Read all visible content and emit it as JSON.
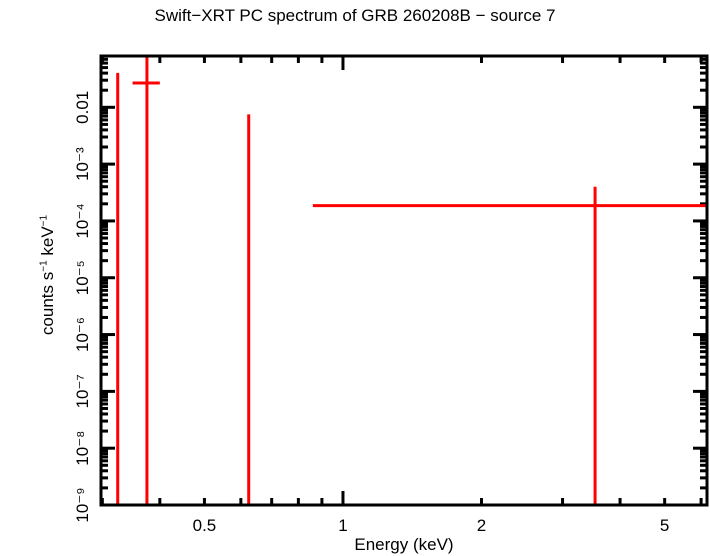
{
  "chart_data": {
    "type": "scatter",
    "title": "Swift−XRT PC spectrum of GRB 260208B − source 7",
    "xlabel": "Energy (keV)",
    "ylabel": "counts s⁻¹ keV⁻¹",
    "xscale": "log",
    "yscale": "log",
    "xlim": [
      0.298,
      6.18
    ],
    "ylim": [
      1e-09,
      0.08
    ],
    "grid": false,
    "legend": null,
    "x_ticks": [
      {
        "value": 0.5,
        "label": "0.5"
      },
      {
        "value": 1,
        "label": "1"
      },
      {
        "value": 2,
        "label": "2"
      },
      {
        "value": 5,
        "label": "5"
      }
    ],
    "y_ticks": [
      {
        "value": 0.01,
        "label": "0.01"
      },
      {
        "value": 0.001,
        "label": "10⁻³"
      },
      {
        "value": 0.0001,
        "label": "10⁻⁴"
      },
      {
        "value": 1e-05,
        "label": "10⁻⁵"
      },
      {
        "value": 1e-06,
        "label": "10⁻⁶"
      },
      {
        "value": 1e-07,
        "label": "10⁻⁷"
      },
      {
        "value": 1e-08,
        "label": "10⁻⁸"
      },
      {
        "value": 1e-09,
        "label": "10⁻⁹"
      }
    ],
    "series": [
      {
        "name": "source 7 PC spectrum",
        "color": "#ff0000",
        "points": [
          {
            "x": 0.324,
            "xlo": 0.324,
            "xhi": 0.324,
            "y": 0.0404,
            "ylo": 1e-09,
            "yhi": 0.0404,
            "note": "upper-limit style bar, no horizontal extent visible"
          },
          {
            "x": 0.375,
            "xlo": 0.349,
            "xhi": 0.4,
            "y": 0.0268,
            "ylo": 1e-09,
            "yhi": 0.08
          },
          {
            "x": 0.624,
            "xlo": 0.624,
            "xhi": 0.624,
            "y": 0.0075,
            "ylo": 1e-09,
            "yhi": 0.0075,
            "note": "vertical bar only"
          },
          {
            "x": 3.53,
            "xlo": 0.86,
            "xhi": 6.18,
            "y": 0.000186,
            "ylo": 1e-09,
            "yhi": 0.0004
          }
        ]
      }
    ]
  }
}
